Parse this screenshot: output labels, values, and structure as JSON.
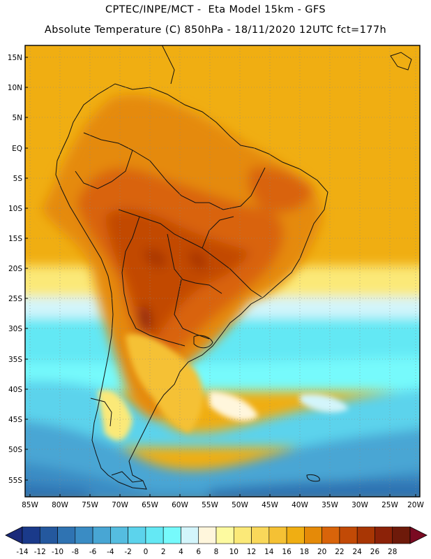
{
  "header": {
    "line1": "CPTEC/INPE/MCT -  Eta Model 15km - GFS",
    "line2": "Absolute Temperature (C) 850hPa - 18/11/2020 12UTC fct=177h"
  },
  "map": {
    "lat_ticks": [
      "15N",
      "10N",
      "5N",
      "EQ",
      "5S",
      "10S",
      "15S",
      "20S",
      "25S",
      "30S",
      "35S",
      "40S",
      "45S",
      "50S",
      "55S"
    ],
    "lon_ticks": [
      "85W",
      "80W",
      "75W",
      "70W",
      "65W",
      "60W",
      "55W",
      "50W",
      "45W",
      "40W",
      "35W",
      "30W",
      "25W",
      "20W"
    ]
  },
  "colorbar": {
    "labels": [
      "-14",
      "-12",
      "-10",
      "-8",
      "-6",
      "-4",
      "-2",
      "0",
      "2",
      "4",
      "6",
      "8",
      "10",
      "12",
      "14",
      "16",
      "18",
      "20",
      "22",
      "24",
      "26",
      "28"
    ],
    "colors": [
      "#1a3a8a",
      "#24589e",
      "#2f73b2",
      "#3a8cc4",
      "#48a6d4",
      "#55bde0",
      "#5cd3ec",
      "#64e8f4",
      "#76fafc",
      "#d3f5fb",
      "#fff6dc",
      "#fdfaa0",
      "#fbe978",
      "#f9d85a",
      "#f5c134",
      "#f0ae12",
      "#e58a08",
      "#d9640a",
      "#c24a06",
      "#a83604",
      "#8c2208",
      "#6e1a0a"
    ],
    "left_arrow_color": "#1a2a7a",
    "right_arrow_color": "#7a0a22"
  }
}
